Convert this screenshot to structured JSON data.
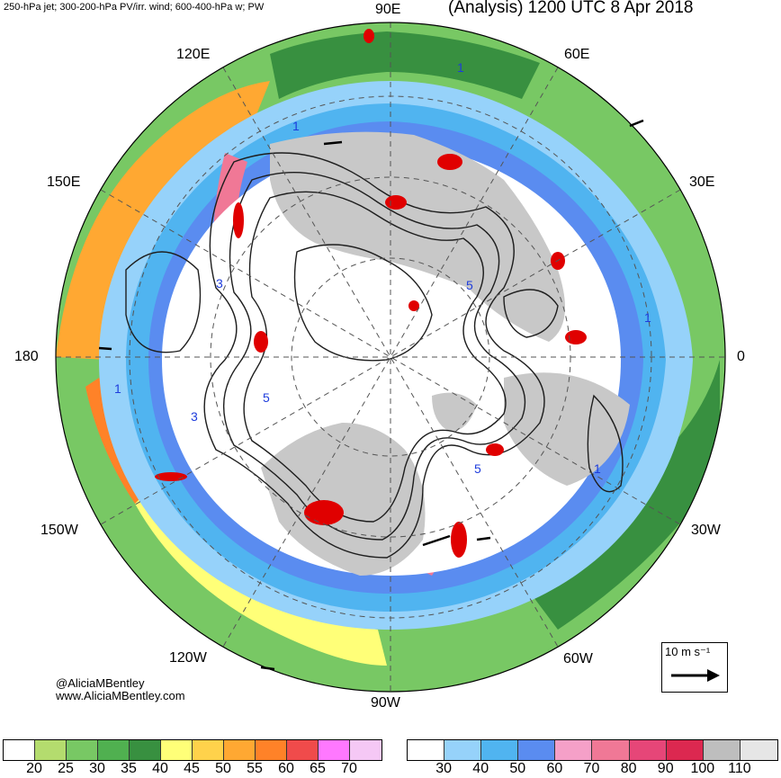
{
  "header": {
    "left_title": "250-hPa jet; 300-200-hPa PV/irr. wind; 600-400-hPa w; PW",
    "right_title": "(Analysis) 1200 UTC 8 Apr 2018"
  },
  "longitude_labels": {
    "n90e": "90E",
    "n60e": "60E",
    "n30e": "30E",
    "n0": "0",
    "n30w": "30W",
    "n60w": "60W",
    "n90w": "90W",
    "n120w": "120W",
    "n150w": "150W",
    "n180": "180",
    "n150e": "150E",
    "n120e": "120E"
  },
  "credits": {
    "twitter": "@AliciaMBentley",
    "website": "www.AliciaMBentley.com"
  },
  "reference_vector": {
    "label": "10 m s⁻¹"
  },
  "legend_pw": {
    "ticks": [
      "20",
      "25",
      "30",
      "35",
      "40",
      "45",
      "50",
      "55",
      "60",
      "65",
      "70"
    ],
    "colors": [
      "#ffffff",
      "#b4dc6e",
      "#78c864",
      "#50b050",
      "#389040",
      "#ffff78",
      "#ffd24b",
      "#ffa832",
      "#ff8228",
      "#f04b4b",
      "#ff78ff",
      "#f5c8f5"
    ]
  },
  "legend_jet": {
    "ticks": [
      "30",
      "40",
      "50",
      "60",
      "70",
      "80",
      "90",
      "100",
      "110"
    ],
    "colors": [
      "#ffffff",
      "#96d2fa",
      "#50b4f0",
      "#5a8cf0",
      "#f5a0c8",
      "#f07896",
      "#e64678",
      "#dc2850",
      "#bebebe",
      "#e6e6e6"
    ]
  },
  "map_colors": {
    "land_gray": "#c8c8c8",
    "jet_light": "#96d2fa",
    "jet_mid": "#50b4f0",
    "jet_dark": "#5a8cf0",
    "jet_pink": "#f07896",
    "pw_green": "#78c864",
    "pw_dkgreen": "#389040",
    "pw_yellow": "#ffff78",
    "pw_orange": "#ffa832",
    "vertical_motion": "#e00000",
    "pv_contour": "#1e1e1e"
  },
  "contour_labels": [
    "1",
    "1",
    "1",
    "1",
    "1",
    "3",
    "3",
    "5",
    "5",
    "5"
  ]
}
